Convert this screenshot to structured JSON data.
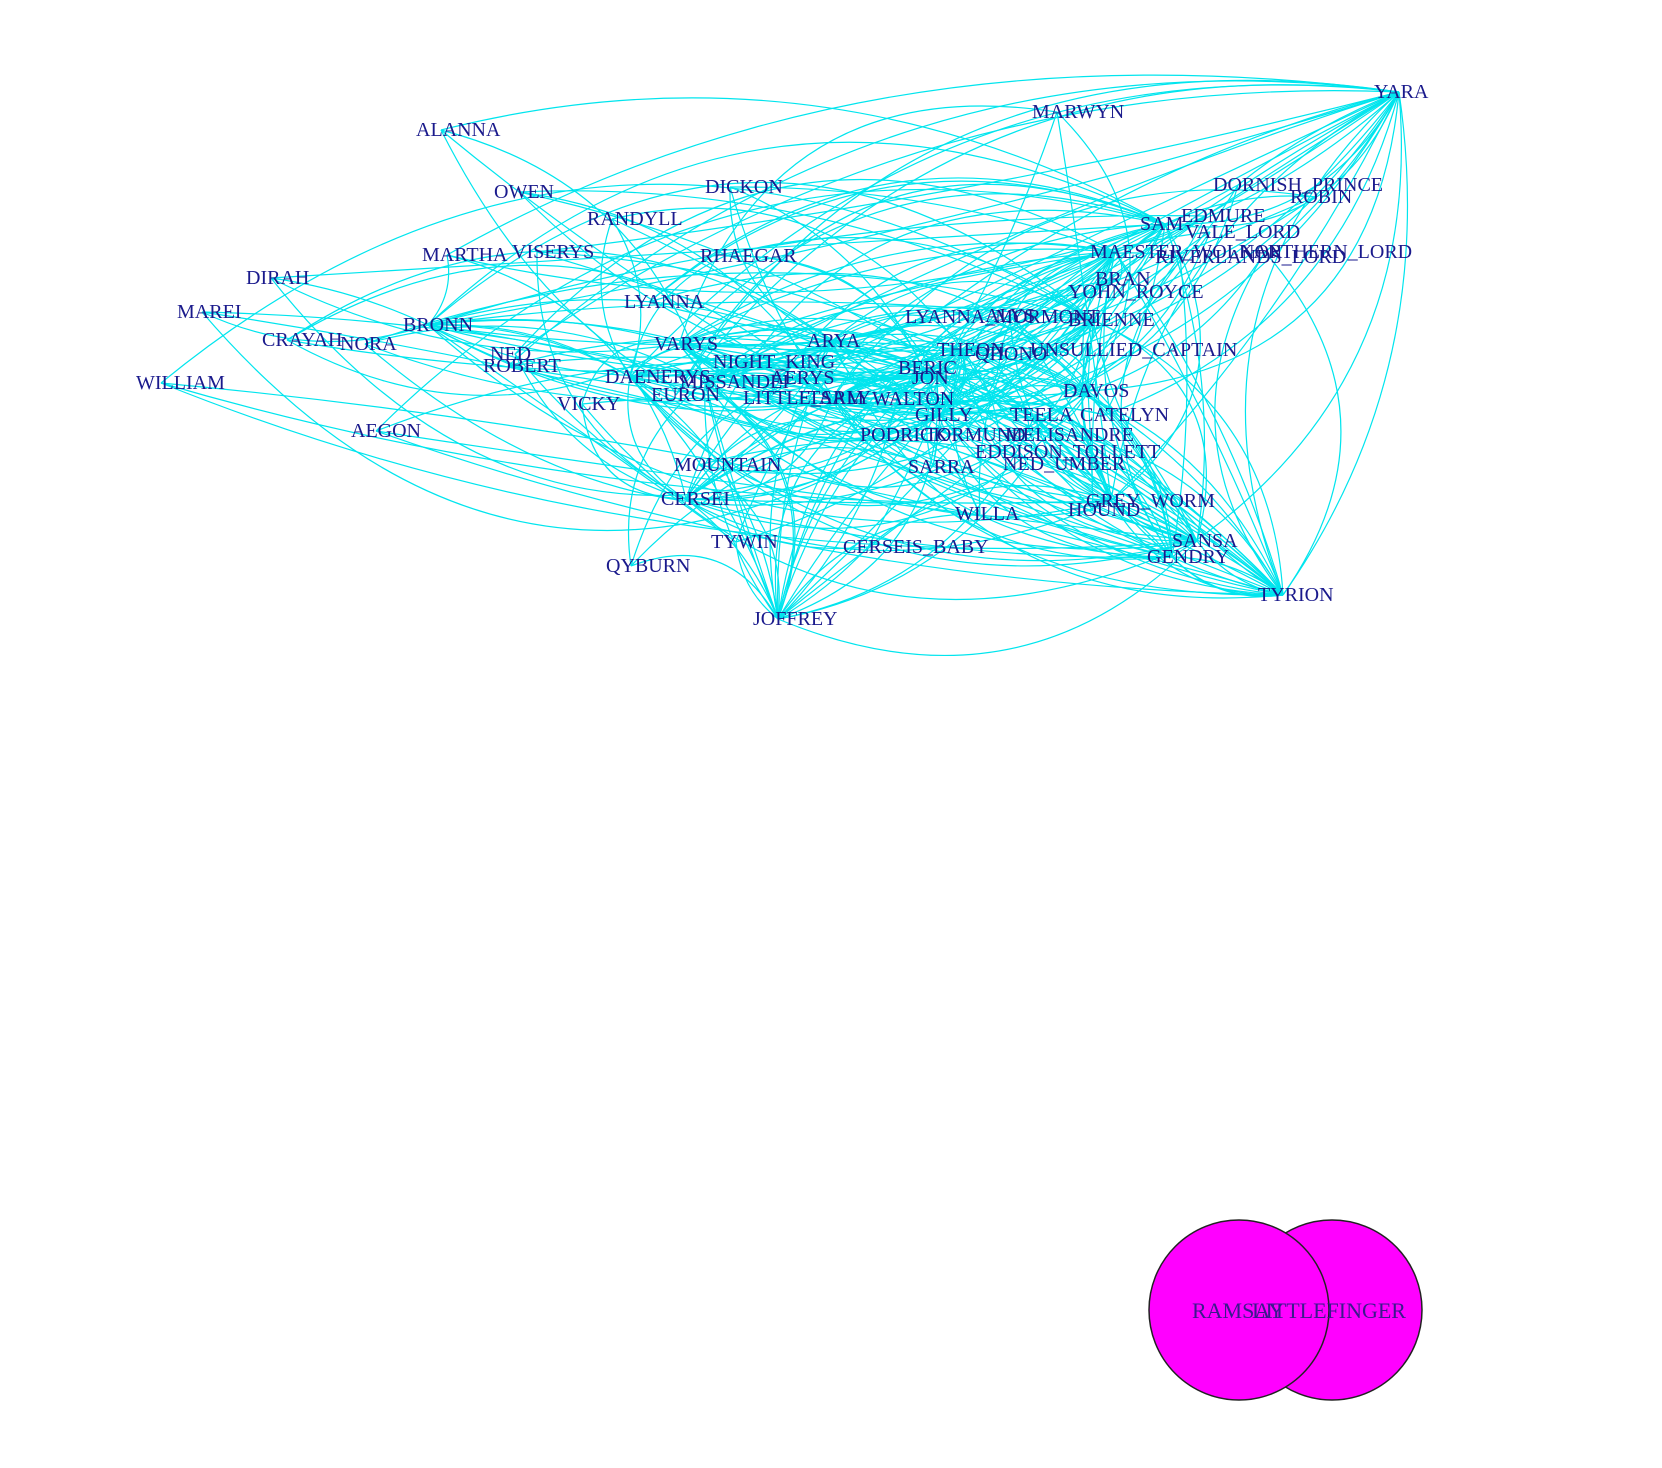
{
  "graph": {
    "edge_color": "#00e5ee",
    "label_color": "#1a1a8c",
    "highlight_fill": "#ff00ff",
    "nodes": [
      {
        "id": "YARA",
        "label": "YARA"
      },
      {
        "id": "MARWYN",
        "label": "MARWYN"
      },
      {
        "id": "ALANNA",
        "label": "ALANNA"
      },
      {
        "id": "OWEN",
        "label": "OWEN"
      },
      {
        "id": "DICKON",
        "label": "DICKON"
      },
      {
        "id": "DORNISH_PRINCE",
        "label": "DORNISH_PRINCE"
      },
      {
        "id": "ROBIN",
        "label": "ROBIN"
      },
      {
        "id": "RANDYLL",
        "label": "RANDYLL"
      },
      {
        "id": "SAM",
        "label": "SAM"
      },
      {
        "id": "EDMURE",
        "label": "EDMURE"
      },
      {
        "id": "VALE_LORD",
        "label": "VALE_LORD"
      },
      {
        "id": "MARTHA",
        "label": "MARTHA"
      },
      {
        "id": "VISERYS",
        "label": "VISERYS"
      },
      {
        "id": "RHAEGAR",
        "label": "RHAEGAR"
      },
      {
        "id": "MAESTER_WOLKAN",
        "label": "MAESTER_WOLKAN"
      },
      {
        "id": "NORTHERN_LORD",
        "label": "NORTHERN_LORD"
      },
      {
        "id": "RIVERLANDS_LORD",
        "label": "RIVERLANDS_LORD"
      },
      {
        "id": "DIRAH",
        "label": "DIRAH"
      },
      {
        "id": "BRAN",
        "label": "BRAN"
      },
      {
        "id": "YOHN_ROYCE",
        "label": "YOHN_ROYCE"
      },
      {
        "id": "MAREI",
        "label": "MAREI"
      },
      {
        "id": "LYANNA",
        "label": "LYANNA"
      },
      {
        "id": "LYANNA_MORMONT",
        "label": "LYANNA_MORMONT"
      },
      {
        "id": "ALYS",
        "label": "ALYS"
      },
      {
        "id": "BRIENNE",
        "label": "BRIENNE"
      },
      {
        "id": "BRONN",
        "label": "BRONN"
      },
      {
        "id": "CRAYAH",
        "label": "CRAYAH"
      },
      {
        "id": "NORA",
        "label": "NORA"
      },
      {
        "id": "VARYS",
        "label": "VARYS"
      },
      {
        "id": "ARYA",
        "label": "ARYA"
      },
      {
        "id": "THEON",
        "label": "THEON"
      },
      {
        "id": "QHONO",
        "label": "QHONO"
      },
      {
        "id": "UNSULLIED_CAPTAIN",
        "label": "UNSULLIED_CAPTAIN"
      },
      {
        "id": "NED",
        "label": "NED"
      },
      {
        "id": "NIGHT_KING",
        "label": "NIGHT_KING"
      },
      {
        "id": "ROBERT",
        "label": "ROBERT"
      },
      {
        "id": "BERIC",
        "label": "BERIC"
      },
      {
        "id": "DAENERYS",
        "label": "DAENERYS"
      },
      {
        "id": "MISSANDEI",
        "label": "MISSANDEI"
      },
      {
        "id": "AERYS",
        "label": "AERYS"
      },
      {
        "id": "JON",
        "label": "JON"
      },
      {
        "id": "WILLIAM",
        "label": "WILLIAM"
      },
      {
        "id": "DAVOS",
        "label": "DAVOS"
      },
      {
        "id": "EURON",
        "label": "EURON"
      },
      {
        "id": "LITTLE_SAM",
        "label": "LITTLE_SAM"
      },
      {
        "id": "TARLY",
        "label": "TARLY"
      },
      {
        "id": "WALTON",
        "label": "WALTON"
      },
      {
        "id": "VICKY",
        "label": "VICKY"
      },
      {
        "id": "TEELA",
        "label": "TEELA"
      },
      {
        "id": "CATELYN",
        "label": "CATELYN"
      },
      {
        "id": "GILLY",
        "label": "GILLY"
      },
      {
        "id": "AEGON",
        "label": "AEGON"
      },
      {
        "id": "PODRICK",
        "label": "PODRICK"
      },
      {
        "id": "TORMUND",
        "label": "TORMUND"
      },
      {
        "id": "MELISANDRE",
        "label": "MELISANDRE"
      },
      {
        "id": "EDDISON_TOLLETT",
        "label": "EDDISON_TOLLETT"
      },
      {
        "id": "NED_UMBER",
        "label": "NED_UMBER"
      },
      {
        "id": "MOUNTAIN",
        "label": "MOUNTAIN"
      },
      {
        "id": "SARRA",
        "label": "SARRA"
      },
      {
        "id": "CERSEI",
        "label": "CERSEI"
      },
      {
        "id": "GREY_WORM",
        "label": "GREY_WORM"
      },
      {
        "id": "HOUND",
        "label": "HOUND"
      },
      {
        "id": "WILLA",
        "label": "WILLA"
      },
      {
        "id": "SANSA",
        "label": "SANSA"
      },
      {
        "id": "TYWIN",
        "label": "TYWIN"
      },
      {
        "id": "CERSEIS_BABY",
        "label": "CERSEIS_BABY"
      },
      {
        "id": "GENDRY",
        "label": "GENDRY"
      },
      {
        "id": "QYBURN",
        "label": "QYBURN"
      },
      {
        "id": "TYRION",
        "label": "TYRION"
      },
      {
        "id": "JOFFREY",
        "label": "JOFFREY"
      }
    ],
    "visible_labels": [
      "YARA",
      "MARWYN",
      "ALANNA",
      "OWEN",
      "DICKON",
      "DORNISH_PRINCE",
      "ROBIN",
      "RANDYLL",
      "SAM",
      "EDMURE",
      "VALE_LORD",
      "MARTHA",
      "VISERYS",
      "RHAEGAR",
      "MAESTER_WOLKAN",
      "NORTHERN_LORD",
      "RIVERLANDS_LORD",
      "DIRAH",
      "BRAN",
      "YOHN_ROYCE",
      "MAREI",
      "LYANNA",
      "LYANNA_MORMONT",
      "ALYS",
      "BRIENNE",
      "BRONN",
      "CRAYAH",
      "NORA",
      "VARYS",
      "ARYA",
      "THEON",
      "QHONO",
      "UNSULLIED_CAPTAIN",
      "NED",
      "NIGHT_KING",
      "ROBERT",
      "BERIC",
      "DAENERYS",
      "MISSANDEI",
      "AERYS",
      "JON",
      "WILLIAM",
      "DAVOS",
      "EURON",
      "LITTLE_SAM",
      "TARLY",
      "WALTON",
      "VICKY",
      "TEELA",
      "CATELYN",
      "GILLY",
      "AEGON",
      "PODRICK",
      "TORMUND",
      "MELISANDRE",
      "EDDISON_TOLLETT",
      "NED_UMBER",
      "MOUNTAIN",
      "SARRA",
      "CERSEI",
      "GREY_WORM",
      "HOUND",
      "WILLA",
      "SANSA",
      "TYWIN",
      "CERSEIS_BABY",
      "GENDRY",
      "QYBURN",
      "TYRION",
      "JOFFREY"
    ],
    "highlighted_nodes": [
      {
        "id": "RAMSAY",
        "label": "RAMSAY"
      },
      {
        "id": "LITTLEFINGER",
        "label": "LITTLEFINGER"
      }
    ]
  }
}
